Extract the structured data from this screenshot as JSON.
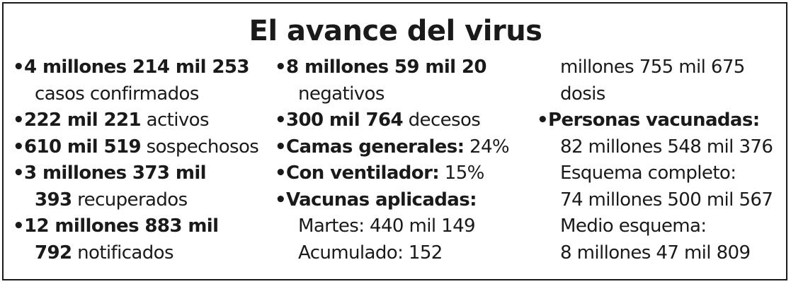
{
  "title": "El avance del virus",
  "col1": {
    "casos_num": "4 millones 214 mil 253",
    "casos_label": "casos confirmados",
    "activos_num": "222 mil 221",
    "activos_label": "activos",
    "sospechosos_num": "610 mil 519",
    "sospechosos_label": "sospechosos",
    "recuperados_num_a": "3 millones 373 mil",
    "recuperados_num_b": "393",
    "recuperados_label": "recuperados",
    "notificados_num_a": "12 millones 883 mil",
    "notificados_num_b": "792",
    "notificados_label": "notificados"
  },
  "col2": {
    "negativos_num": "8 millones 59 mil 20",
    "negativos_label": "negativos",
    "decesos_num": "300 mil 764",
    "decesos_label": "decesos",
    "camas_label": "Camas generales:",
    "camas_value": "24%",
    "ventilador_label": "Con ventilador:",
    "ventilador_value": "15%",
    "vacunas_label": "Vacunas aplicadas:",
    "martes": "Martes: 440 mil 149",
    "acumulado": "Acumulado: 152"
  },
  "col3": {
    "acumulado_cont_a": "millones 755 mil 675",
    "acumulado_cont_b": "dosis",
    "personas_label": "Personas vacunadas:",
    "personas_value": "82 millones 548 mil 376",
    "completo_label": "Esquema completo:",
    "completo_value": "74 millones 500 mil 567",
    "medio_label": "Medio esquema:",
    "medio_value": "8 millones 47 mil 809"
  },
  "bullet_glyph": "•"
}
